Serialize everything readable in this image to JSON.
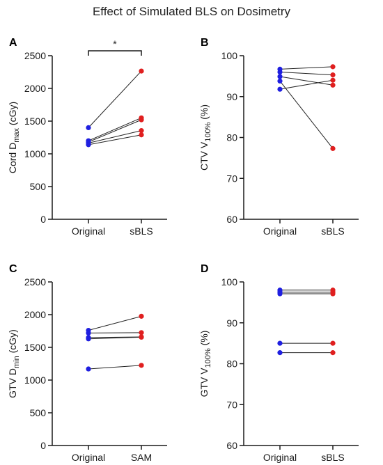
{
  "figure": {
    "title": "Effect of Simulated BLS on Dosimetry"
  },
  "colors": {
    "group1": "#1f1fe0",
    "group2": "#e01f1f",
    "axis": "#1a1a1a",
    "line": "#222222"
  },
  "chart_data": [
    {
      "panel": "A",
      "type": "scatter",
      "categories": [
        "Original",
        "sBLS"
      ],
      "ylabel": {
        "main": "Cord D",
        "sub": "max",
        "tail": " (cGy)"
      },
      "ylim": [
        0,
        2500
      ],
      "yticks": [
        "0",
        "500",
        "1000",
        "1500",
        "2000",
        "2500"
      ],
      "significance": "*",
      "pairs": [
        [
          1400,
          2265
        ],
        [
          1200,
          1550
        ],
        [
          1180,
          1520
        ],
        [
          1165,
          1355
        ],
        [
          1140,
          1290
        ]
      ]
    },
    {
      "panel": "B",
      "type": "scatter",
      "categories": [
        "Original",
        "sBLS"
      ],
      "ylabel": {
        "main": "CTV V",
        "sub": "100%",
        "tail": " (%)"
      },
      "ylim": [
        60,
        100
      ],
      "yticks": [
        "60",
        "70",
        "80",
        "90",
        "100"
      ],
      "significance": "",
      "pairs": [
        [
          96.7,
          97.3
        ],
        [
          96.0,
          95.3
        ],
        [
          94.9,
          92.8
        ],
        [
          93.8,
          77.3
        ],
        [
          91.8,
          94.0
        ]
      ]
    },
    {
      "panel": "C",
      "type": "scatter",
      "categories": [
        "Original",
        "SAM"
      ],
      "ylabel": {
        "main": "GTV D",
        "sub": "min",
        "tail": " (cGy)"
      },
      "ylim": [
        0,
        2500
      ],
      "yticks": [
        "0",
        "500",
        "1000",
        "1500",
        "2000",
        "2500"
      ],
      "significance": "",
      "pairs": [
        [
          1760,
          1975
        ],
        [
          1720,
          1725
        ],
        [
          1650,
          1660
        ],
        [
          1630,
          1655
        ],
        [
          1170,
          1225
        ]
      ]
    },
    {
      "panel": "D",
      "type": "scatter",
      "categories": [
        "Original",
        "sBLS"
      ],
      "ylabel": {
        "main": "GTV V",
        "sub": "100%",
        "tail": " (%)"
      },
      "ylim": [
        60,
        100
      ],
      "yticks": [
        "60",
        "70",
        "80",
        "90",
        "100"
      ],
      "significance": "",
      "pairs": [
        [
          98.0,
          98.0
        ],
        [
          97.5,
          97.5
        ],
        [
          97.1,
          97.1
        ],
        [
          85.0,
          85.0
        ],
        [
          82.7,
          82.7
        ]
      ]
    }
  ]
}
